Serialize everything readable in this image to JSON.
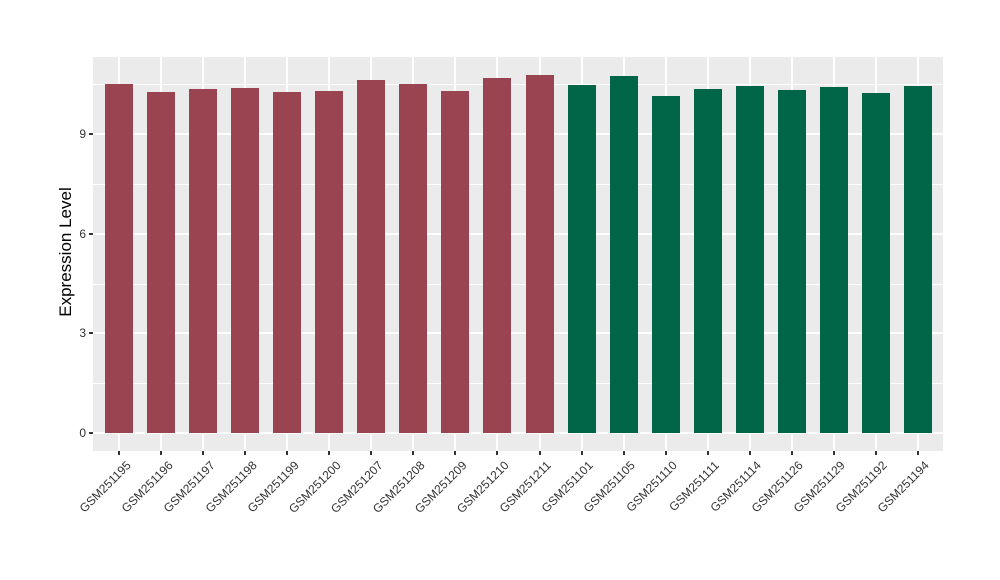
{
  "chart_data": {
    "type": "bar",
    "title": "",
    "xlabel": "",
    "ylabel": "Expression Level",
    "ylim": [
      -0.54,
      11.32
    ],
    "yticks": [
      0,
      3,
      6,
      9
    ],
    "yticks_minor": [
      1.5,
      4.5,
      7.5,
      10.5
    ],
    "grid": true,
    "legend_position": "none",
    "categories": [
      "GSM251195",
      "GSM251196",
      "GSM251197",
      "GSM251198",
      "GSM251199",
      "GSM251200",
      "GSM251207",
      "GSM251208",
      "GSM251209",
      "GSM251210",
      "GSM251211",
      "GSM251101",
      "GSM251105",
      "GSM251110",
      "GSM251111",
      "GSM251114",
      "GSM251126",
      "GSM251129",
      "GSM251192",
      "GSM251194"
    ],
    "values": [
      10.51,
      10.26,
      10.35,
      10.38,
      10.28,
      10.29,
      10.62,
      10.5,
      10.31,
      10.68,
      10.78,
      10.48,
      10.75,
      10.14,
      10.36,
      10.44,
      10.33,
      10.41,
      10.23,
      10.45
    ],
    "bar_groups": [
      "a",
      "a",
      "a",
      "a",
      "a",
      "a",
      "a",
      "a",
      "a",
      "a",
      "a",
      "b",
      "b",
      "b",
      "b",
      "b",
      "b",
      "b",
      "b",
      "b"
    ],
    "group_colors": {
      "a": "#9A4351",
      "b": "#006647"
    },
    "style": {
      "panel_background": "#EBEBEB",
      "grid_color": "#FFFFFF",
      "axis_text_color": "#333333",
      "axis_title_color": "#000000",
      "tick_color": "#333333",
      "page_background": "#FFFFFF"
    }
  }
}
